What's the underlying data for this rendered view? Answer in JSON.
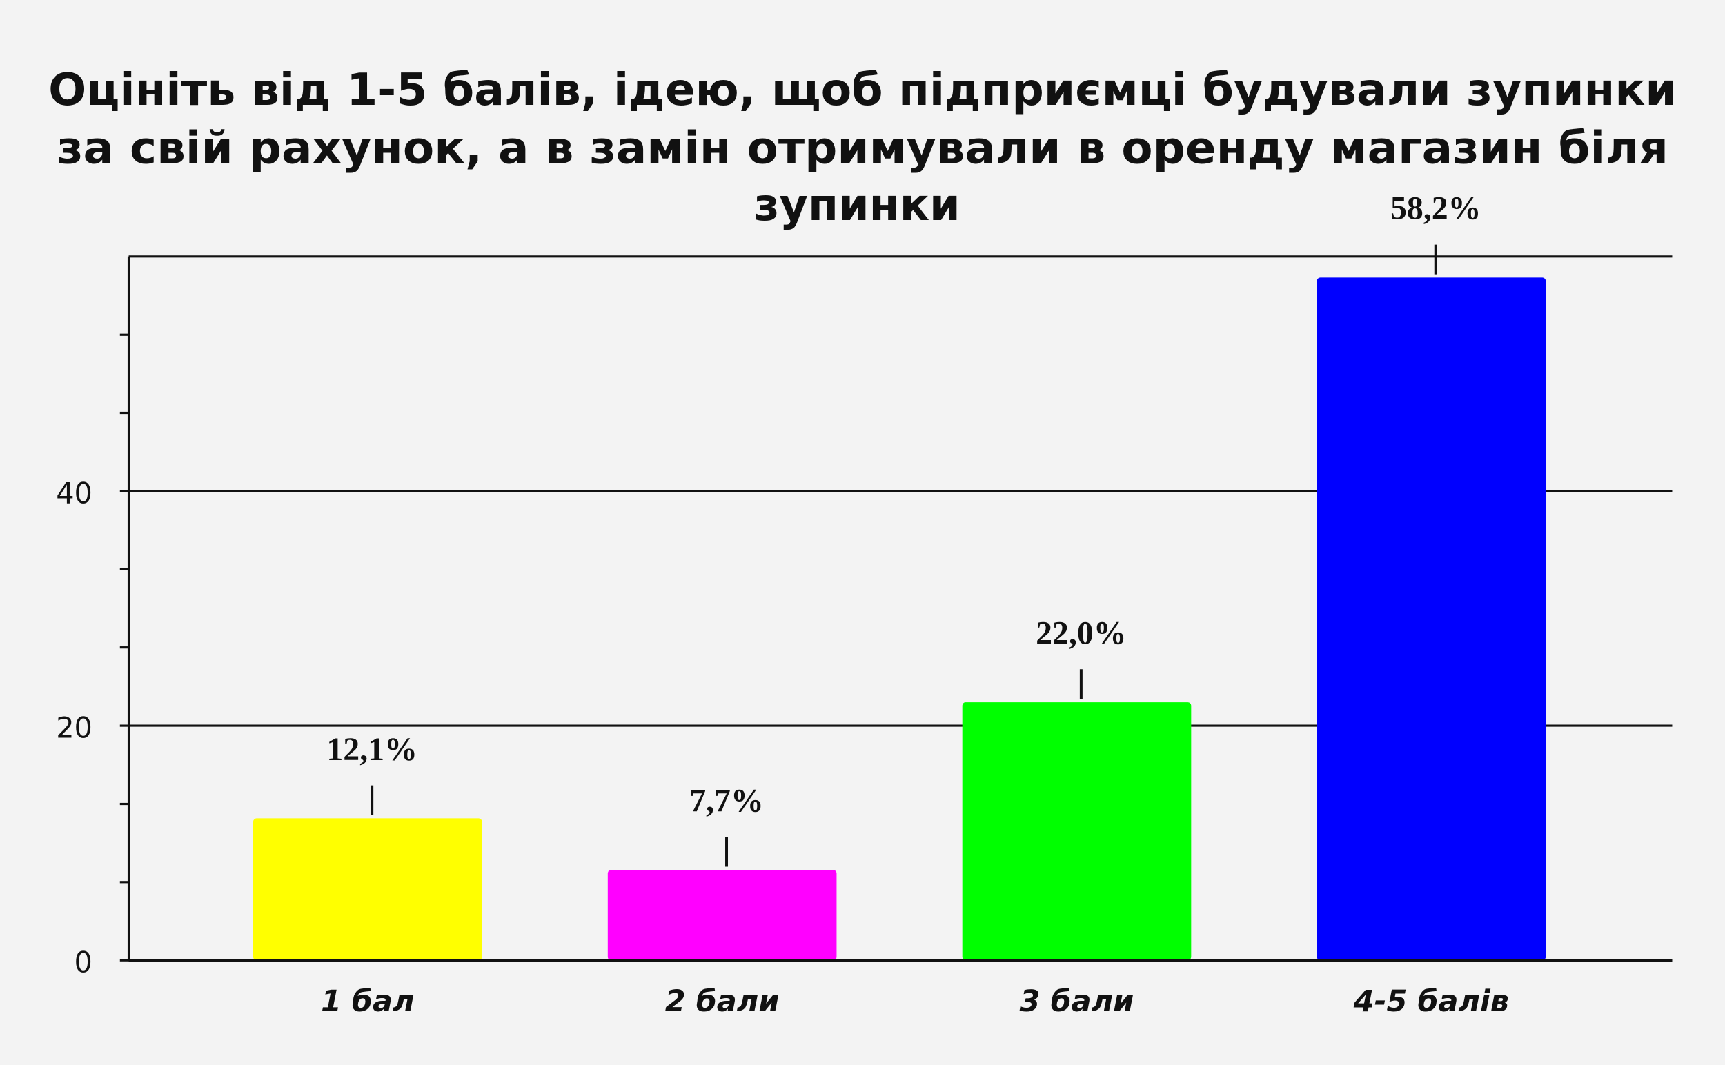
{
  "chart_data": {
    "type": "bar",
    "title": [
      "Оцініть від 1-5 балів, ідею, щоб підприємці будували зупинки",
      "за свій рахунок, а в замін отримували в оренду магазин біля",
      "зупинки"
    ],
    "categories": [
      "1 бал",
      "2 бали",
      "3 бали",
      "4-5 балів"
    ],
    "values": [
      12.1,
      7.7,
      22.0,
      58.2
    ],
    "value_labels": [
      "12,1%",
      "7,7%",
      "22,0%",
      "58,2%"
    ],
    "colors": [
      "#ffff00",
      "#ff00ff",
      "#00ff00",
      "#0000ff"
    ],
    "ylim": [
      0,
      60
    ],
    "yticks": [
      0,
      20,
      40
    ],
    "minor_yticks": [
      6.67,
      13.33,
      26.67,
      33.33,
      46.67,
      53.33
    ],
    "grid": true
  }
}
